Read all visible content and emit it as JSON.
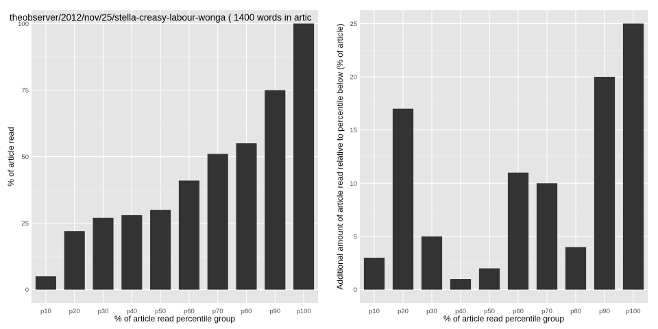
{
  "chart_data": [
    {
      "type": "bar",
      "title": "theobserver/2012/nov/25/stella-creasy-labour-wonga ( 1400 words in artic",
      "xlabel": "% of article read percentile group",
      "ylabel": "% of article read",
      "categories": [
        "p10",
        "p20",
        "p30",
        "p40",
        "p50",
        "p60",
        "p70",
        "p80",
        "p90",
        "p100"
      ],
      "values": [
        5,
        22,
        27,
        28,
        30,
        41,
        51,
        55,
        75,
        100
      ],
      "yticks": [
        0,
        25,
        50,
        75,
        100
      ],
      "ylim": [
        -5,
        105
      ],
      "grid": true,
      "colors": {
        "bar": "#333333",
        "panel": "#e5e5e5",
        "grid": "#ffffff",
        "text": "#000000",
        "tick": "#4d4d4d"
      }
    },
    {
      "type": "bar",
      "title": "",
      "xlabel": "% of article read percentile group",
      "ylabel": "Additional amount of article read relative to percentile below (% of article)",
      "categories": [
        "p10",
        "p20",
        "p30",
        "p40",
        "p50",
        "p60",
        "p70",
        "p80",
        "p90",
        "p100"
      ],
      "values": [
        3,
        17,
        5,
        1,
        2,
        11,
        10,
        4,
        20,
        25
      ],
      "yticks": [
        0,
        5,
        10,
        15,
        20,
        25
      ],
      "ylim": [
        -1.25,
        26.25
      ],
      "grid": true,
      "colors": {
        "bar": "#333333",
        "panel": "#e5e5e5",
        "grid": "#ffffff",
        "text": "#000000",
        "tick": "#4d4d4d"
      }
    }
  ]
}
